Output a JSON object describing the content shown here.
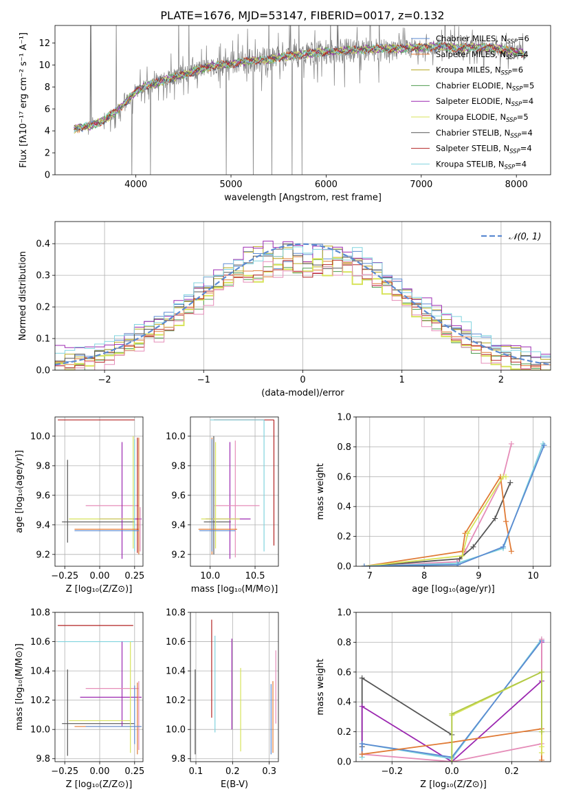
{
  "title": "PLATE=1676, MJD=53147, FIBERID=0017, z=0.132",
  "colors": {
    "chabrier_miles": "#5b8ad1",
    "salpeter_miles": "#e07a35",
    "kroupa_miles": "#b5a61e",
    "chabrier_elodie": "#4d9a4d",
    "salpeter_elodie": "#9b27b0",
    "kroupa_elodie": "#d7e35a",
    "chabrier_stelib": "#555555",
    "salpeter_stelib": "#b22222",
    "kroupa_stelib": "#7fd3de",
    "gaussian": "#5b8ad1",
    "data": "#7a7a7a",
    "extra_pink": "#e58cb8",
    "extra_olive": "#b0c848"
  },
  "chart_data": [
    {
      "id": "spectrum",
      "type": "line",
      "title": "PLATE=1676, MJD=53147, FIBERID=0017, z=0.132",
      "xlabel": "wavelength [Angstrom, rest frame]",
      "ylabel": "Flux [fλ10⁻¹⁷ erg cm⁻² s⁻¹ A⁻¹]",
      "xlim": [
        3150,
        8360
      ],
      "ylim": [
        0,
        13.6
      ],
      "xticks": [
        4000,
        5000,
        6000,
        7000,
        8000
      ],
      "yticks": [
        0,
        2,
        4,
        6,
        8,
        10,
        12
      ],
      "grid": false,
      "legend_position": "right",
      "continuum": {
        "x": [
          3350,
          3500,
          3650,
          3800,
          3900,
          4000,
          4100,
          4200,
          4400,
          4600,
          4800,
          5000,
          5200,
          5400,
          5600,
          5800,
          6000,
          6200,
          6400,
          6600,
          6800,
          7000,
          7200,
          7400,
          7600,
          7800,
          8000,
          8100
        ],
        "y": [
          4.2,
          4.4,
          4.9,
          5.8,
          6.7,
          7.6,
          8.1,
          8.3,
          8.9,
          9.4,
          9.9,
          10.1,
          10.4,
          10.5,
          10.8,
          11.0,
          11.2,
          11.3,
          11.4,
          11.5,
          11.5,
          11.6,
          11.7,
          11.5,
          11.6,
          11.5,
          11.2,
          11.0
        ]
      },
      "legend": [
        {
          "label": "Chabrier MILES, N",
          "sub": "SSP",
          "val": "=6",
          "color_key": "chabrier_miles"
        },
        {
          "label": "Salpeter MILES, N",
          "sub": "SSP",
          "val": "=4",
          "color_key": "salpeter_miles"
        },
        {
          "label": "Kroupa MILES, N",
          "sub": "SSP",
          "val": "=6",
          "color_key": "kroupa_miles"
        },
        {
          "label": "Chabrier ELODIE, N",
          "sub": "SSP",
          "val": "=5",
          "color_key": "chabrier_elodie"
        },
        {
          "label": "Salpeter ELODIE, N",
          "sub": "SSP",
          "val": "=4",
          "color_key": "salpeter_elodie"
        },
        {
          "label": "Kroupa ELODIE, N",
          "sub": "SSP",
          "val": "=5",
          "color_key": "kroupa_elodie"
        },
        {
          "label": "Chabrier STELIB, N",
          "sub": "SSP",
          "val": "=4",
          "color_key": "chabrier_stelib"
        },
        {
          "label": "Salpeter STELIB, N",
          "sub": "SSP",
          "val": "=4",
          "color_key": "salpeter_stelib"
        },
        {
          "label": "Kroupa STELIB, N",
          "sub": "SSP",
          "val": "=4",
          "color_key": "kroupa_stelib"
        }
      ]
    },
    {
      "id": "residuals",
      "type": "line",
      "xlabel": "(data-model)/error",
      "ylabel": "Normed distribution",
      "xlim": [
        -2.5,
        2.5
      ],
      "ylim": [
        0,
        0.47
      ],
      "xticks": [
        -2,
        -1,
        0,
        1,
        2
      ],
      "yticks": [
        0.0,
        0.1,
        0.2,
        0.3,
        0.4
      ],
      "grid": true,
      "legend": [
        {
          "label": "𝒩(0, 1)",
          "color_key": "gaussian"
        }
      ],
      "legend_position": "top-right",
      "bin_width": 0.1,
      "hist_series": [
        {
          "color_key": "chabrier_miles",
          "offset": 0.02
        },
        {
          "color_key": "salpeter_miles",
          "offset": -0.01
        },
        {
          "color_key": "kroupa_miles",
          "offset": 0.015
        },
        {
          "color_key": "chabrier_elodie",
          "offset": -0.02
        },
        {
          "color_key": "salpeter_elodie",
          "offset": 0.03
        },
        {
          "color_key": "kroupa_elodie",
          "offset": -0.025
        },
        {
          "color_key": "chabrier_stelib",
          "offset": 0.01
        },
        {
          "color_key": "salpeter_stelib",
          "offset": -0.015
        },
        {
          "color_key": "kroupa_stelib",
          "offset": 0.025
        },
        {
          "color_key": "extra_pink",
          "offset": -0.03
        }
      ]
    },
    {
      "id": "age-vs-Z",
      "type": "scatter",
      "xlabel": "Z [log₁₀(Z/Z⊙)]",
      "ylabel": "age  [log₁₀(age/yr)]",
      "xlim": [
        -0.32,
        0.31
      ],
      "ylim": [
        9.12,
        10.13
      ],
      "xticks": [
        -0.25,
        0.0,
        0.25
      ],
      "xticklabels": [
        "−0.25",
        "0.00",
        "0.25"
      ],
      "yticks": [
        9.2,
        9.4,
        9.6,
        9.8,
        10.0
      ],
      "grid": true,
      "errbars": [
        {
          "x": 0.25,
          "xlo": -0.3,
          "xhi": 0.25,
          "y": 10.11,
          "ylo": 10.11,
          "yhi": 10.11,
          "color_key": "salpeter_stelib"
        },
        {
          "x": -0.23,
          "xlo": -0.23,
          "xhi": -0.23,
          "y": 9.44,
          "ylo": 9.28,
          "yhi": 9.84,
          "color_key": "chabrier_stelib"
        },
        {
          "x": 0.0,
          "xlo": -0.27,
          "xhi": 0.25,
          "y": 9.42,
          "ylo": 9.42,
          "yhi": 9.42,
          "color_key": "chabrier_stelib"
        },
        {
          "x": 0.2,
          "xlo": -0.1,
          "xhi": 0.28,
          "y": 9.53,
          "ylo": 9.53,
          "yhi": 9.53,
          "color_key": "extra_pink"
        },
        {
          "x": 0.16,
          "xlo": 0.0,
          "xhi": 0.3,
          "y": 9.44,
          "ylo": 9.17,
          "yhi": 9.96,
          "color_key": "salpeter_elodie"
        },
        {
          "x": 0.24,
          "xlo": -0.22,
          "xhi": 0.24,
          "y": 9.44,
          "ylo": 9.24,
          "yhi": 10.0,
          "color_key": "kroupa_elodie"
        },
        {
          "x": 0.25,
          "xlo": 0.25,
          "xhi": 0.25,
          "y": 9.44,
          "ylo": 9.22,
          "yhi": 9.98,
          "color_key": "kroupa_stelib"
        },
        {
          "x": 0.28,
          "xlo": -0.18,
          "xhi": 0.28,
          "y": 9.37,
          "ylo": 9.2,
          "yhi": 9.99,
          "color_key": "salpeter_miles"
        },
        {
          "x": 0.27,
          "xlo": 0.27,
          "xhi": 0.27,
          "y": 9.37,
          "ylo": 9.21,
          "yhi": 9.99,
          "color_key": "salpeter_stelib"
        },
        {
          "x": 0.29,
          "xlo": 0.29,
          "xhi": 0.29,
          "y": 9.37,
          "ylo": 9.22,
          "yhi": 9.52,
          "color_key": "extra_pink"
        },
        {
          "x": 0.1,
          "xlo": -0.18,
          "xhi": 0.28,
          "y": 9.36,
          "ylo": 9.36,
          "yhi": 9.36,
          "color_key": "chabrier_miles"
        }
      ]
    },
    {
      "id": "age-vs-mass",
      "type": "scatter",
      "xlabel": "mass [log₁₀(M/M⊙)]",
      "ylabel": "",
      "xlim": [
        9.78,
        10.76
      ],
      "ylim": [
        9.12,
        10.13
      ],
      "xticks": [
        10.0,
        10.5
      ],
      "xticklabels": [
        "10.0",
        "10.5"
      ],
      "yticks": [
        9.2,
        9.4,
        9.6,
        9.8,
        10.0
      ],
      "grid": true,
      "errbars": [
        {
          "x": 10.71,
          "xlo": 10.04,
          "xhi": 10.71,
          "y": 10.11,
          "ylo": 9.26,
          "yhi": 10.11,
          "color_key": "salpeter_stelib"
        },
        {
          "x": 10.6,
          "xlo": 10.0,
          "xhi": 10.6,
          "y": 10.11,
          "ylo": 9.22,
          "yhi": 10.11,
          "color_key": "kroupa_stelib"
        },
        {
          "x": 10.04,
          "xlo": 9.93,
          "xhi": 10.23,
          "y": 9.42,
          "ylo": 9.2,
          "yhi": 10.0,
          "color_key": "chabrier_stelib"
        },
        {
          "x": 10.22,
          "xlo": 9.95,
          "xhi": 10.45,
          "y": 9.44,
          "ylo": 9.17,
          "yhi": 9.96,
          "color_key": "salpeter_elodie"
        },
        {
          "x": 10.28,
          "xlo": 10.05,
          "xhi": 10.55,
          "y": 9.53,
          "ylo": 9.18,
          "yhi": 9.97,
          "color_key": "extra_pink"
        },
        {
          "x": 10.06,
          "xlo": 9.9,
          "xhi": 10.33,
          "y": 9.44,
          "ylo": 9.24,
          "yhi": 9.96,
          "color_key": "kroupa_elodie"
        },
        {
          "x": 10.02,
          "xlo": 9.87,
          "xhi": 10.3,
          "y": 9.37,
          "ylo": 9.2,
          "yhi": 9.99,
          "color_key": "salpeter_miles"
        },
        {
          "x": 10.02,
          "xlo": 9.88,
          "xhi": 10.28,
          "y": 9.36,
          "ylo": 9.22,
          "yhi": 9.98,
          "color_key": "chabrier_miles"
        }
      ]
    },
    {
      "id": "weight-vs-age",
      "type": "line",
      "xlabel": "age  [log₁₀(age/yr)]",
      "ylabel": "mass weight",
      "xlim": [
        6.75,
        10.32
      ],
      "ylim": [
        0,
        1.0
      ],
      "xticks": [
        7,
        8,
        9,
        10
      ],
      "yticks": [
        0.0,
        0.2,
        0.4,
        0.6,
        0.8,
        1.0
      ],
      "grid": true,
      "series": [
        {
          "color_key": "extra_pink",
          "x": [
            6.9,
            8.6,
            8.75,
            9.45,
            9.6
          ],
          "y": [
            0.0,
            0.03,
            0.1,
            0.6,
            0.82
          ]
        },
        {
          "color_key": "chabrier_stelib",
          "x": [
            6.9,
            8.65,
            8.9,
            9.3,
            9.58
          ],
          "y": [
            0.0,
            0.05,
            0.13,
            0.32,
            0.56
          ]
        },
        {
          "color_key": "salpeter_miles",
          "x": [
            6.9,
            8.7,
            8.75,
            9.4,
            9.5,
            9.6
          ],
          "y": [
            0.0,
            0.1,
            0.22,
            0.6,
            0.3,
            0.1
          ]
        },
        {
          "color_key": "kroupa_elodie",
          "x": [
            6.9,
            8.7,
            8.8,
            9.45,
            9.5
          ],
          "y": [
            0.0,
            0.07,
            0.22,
            0.6,
            0.6
          ]
        },
        {
          "color_key": "kroupa_stelib",
          "x": [
            6.9,
            8.6,
            9.45,
            10.18
          ],
          "y": [
            0.0,
            0.02,
            0.12,
            0.82
          ]
        },
        {
          "color_key": "chabrier_miles",
          "x": [
            6.9,
            8.62,
            9.45,
            10.2
          ],
          "y": [
            0.0,
            0.01,
            0.13,
            0.81
          ]
        }
      ]
    },
    {
      "id": "mass-vs-Z",
      "type": "scatter",
      "xlabel": "Z [log₁₀(Z/Z⊙)]",
      "ylabel": "mass [log₁₀(M/M⊙)]",
      "xlim": [
        -0.32,
        0.31
      ],
      "ylim": [
        9.78,
        10.8
      ],
      "xticks": [
        -0.25,
        0.0,
        0.25
      ],
      "xticklabels": [
        "−0.25",
        "0.00",
        "0.25"
      ],
      "yticks": [
        9.8,
        10.0,
        10.2,
        10.4,
        10.6,
        10.8
      ],
      "grid": true,
      "errbars": [
        {
          "x": 0.24,
          "xlo": -0.3,
          "xhi": 0.24,
          "y": 10.71,
          "ylo": 10.71,
          "yhi": 10.71,
          "color_key": "salpeter_stelib"
        },
        {
          "x": 0.24,
          "xlo": -0.3,
          "xhi": 0.24,
          "y": 10.6,
          "ylo": 10.6,
          "yhi": 10.6,
          "color_key": "kroupa_stelib"
        },
        {
          "x": -0.23,
          "xlo": -0.27,
          "xhi": 0.25,
          "y": 10.04,
          "ylo": 9.82,
          "yhi": 10.41,
          "color_key": "chabrier_stelib"
        },
        {
          "x": 0.16,
          "xlo": -0.14,
          "xhi": 0.3,
          "y": 10.22,
          "ylo": 10.02,
          "yhi": 10.6,
          "color_key": "salpeter_elodie"
        },
        {
          "x": 0.28,
          "xlo": -0.1,
          "xhi": 0.28,
          "y": 10.28,
          "ylo": 9.86,
          "yhi": 10.33,
          "color_key": "extra_pink"
        },
        {
          "x": 0.22,
          "xlo": -0.22,
          "xhi": 0.22,
          "y": 10.06,
          "ylo": 9.84,
          "yhi": 10.6,
          "color_key": "kroupa_elodie"
        },
        {
          "x": 0.27,
          "xlo": -0.18,
          "xhi": 0.3,
          "y": 10.02,
          "ylo": 9.83,
          "yhi": 10.32,
          "color_key": "salpeter_miles"
        },
        {
          "x": 0.25,
          "xlo": -0.1,
          "xhi": 0.3,
          "y": 10.02,
          "ylo": 9.9,
          "yhi": 10.3,
          "color_key": "chabrier_miles"
        }
      ]
    },
    {
      "id": "mass-vs-EBV",
      "type": "scatter",
      "xlabel": "E(B-V)",
      "ylabel": "",
      "xlim": [
        0.085,
        0.325
      ],
      "ylim": [
        9.78,
        10.8
      ],
      "xticks": [
        0.1,
        0.2,
        0.3
      ],
      "xticklabels": [
        "0.1",
        "0.2",
        "0.3"
      ],
      "yticks": [
        9.8,
        10.0,
        10.2,
        10.4,
        10.6,
        10.8
      ],
      "grid": true,
      "errbars": [
        {
          "x": 0.098,
          "xlo": 0.098,
          "xhi": 0.098,
          "y": 10.04,
          "ylo": 9.83,
          "yhi": 10.41,
          "color_key": "chabrier_stelib"
        },
        {
          "x": 0.143,
          "xlo": 0.143,
          "xhi": 0.143,
          "y": 10.4,
          "ylo": 10.08,
          "yhi": 10.75,
          "color_key": "salpeter_stelib"
        },
        {
          "x": 0.152,
          "xlo": 0.152,
          "xhi": 0.152,
          "y": 10.35,
          "ylo": 9.98,
          "yhi": 10.64,
          "color_key": "kroupa_stelib"
        },
        {
          "x": 0.198,
          "xlo": 0.198,
          "xhi": 0.198,
          "y": 10.3,
          "ylo": 10.0,
          "yhi": 10.62,
          "color_key": "salpeter_elodie"
        },
        {
          "x": 0.222,
          "xlo": 0.222,
          "xhi": 0.222,
          "y": 10.1,
          "ylo": 9.85,
          "yhi": 10.42,
          "color_key": "kroupa_elodie"
        },
        {
          "x": 0.305,
          "xlo": 0.305,
          "xhi": 0.305,
          "y": 10.05,
          "ylo": 9.83,
          "yhi": 10.31,
          "color_key": "chabrier_miles"
        },
        {
          "x": 0.31,
          "xlo": 0.31,
          "xhi": 0.31,
          "y": 10.02,
          "ylo": 9.84,
          "yhi": 10.33,
          "color_key": "salpeter_miles"
        },
        {
          "x": 0.318,
          "xlo": 0.318,
          "xhi": 0.318,
          "y": 10.28,
          "ylo": 10.04,
          "yhi": 10.54,
          "color_key": "extra_pink"
        }
      ]
    },
    {
      "id": "weight-vs-Z",
      "type": "line",
      "xlabel": "Z [log₁₀(Z/Z⊙)]",
      "ylabel": "mass weight",
      "xlim": [
        -0.32,
        0.33
      ],
      "ylim": [
        0,
        1.0
      ],
      "xticks": [
        -0.2,
        0.0,
        0.2
      ],
      "xticklabels": [
        "−0.2",
        "0.0",
        "0.2"
      ],
      "yticks": [
        0.0,
        0.2,
        0.4,
        0.6,
        0.8,
        1.0
      ],
      "grid": true,
      "series": [
        {
          "color_key": "chabrier_stelib",
          "x": [
            -0.3,
            -0.3,
            0.0
          ],
          "y": [
            0.1,
            0.56,
            0.18
          ]
        },
        {
          "color_key": "salpeter_elodie",
          "x": [
            -0.3,
            -0.3,
            0.0,
            0.3,
            0.3
          ],
          "y": [
            0.05,
            0.37,
            0.0,
            0.54,
            0.8
          ]
        },
        {
          "color_key": "kroupa_stelib",
          "x": [
            -0.3,
            -0.3,
            0.0,
            0.3
          ],
          "y": [
            0.03,
            0.12,
            0.02,
            0.82
          ]
        },
        {
          "color_key": "chabrier_miles",
          "x": [
            -0.3,
            -0.3,
            0.0,
            0.3
          ],
          "y": [
            0.05,
            0.12,
            0.03,
            0.81
          ]
        },
        {
          "color_key": "extra_pink",
          "x": [
            -0.3,
            0.0,
            0.3,
            0.3
          ],
          "y": [
            0.05,
            0.0,
            0.12,
            0.82
          ]
        },
        {
          "color_key": "salpeter_miles",
          "x": [
            -0.3,
            0.0,
            0.3,
            0.3
          ],
          "y": [
            0.05,
            0.13,
            0.22,
            0.01
          ]
        },
        {
          "color_key": "kroupa_elodie",
          "x": [
            0.0,
            0.0,
            0.3,
            0.3,
            0.3
          ],
          "y": [
            0.0,
            0.31,
            0.6,
            0.1,
            0.06
          ]
        },
        {
          "color_key": "extra_olive",
          "x": [
            0.0,
            0.0,
            0.3,
            0.3
          ],
          "y": [
            0.0,
            0.32,
            0.6,
            0.2
          ]
        }
      ]
    }
  ]
}
